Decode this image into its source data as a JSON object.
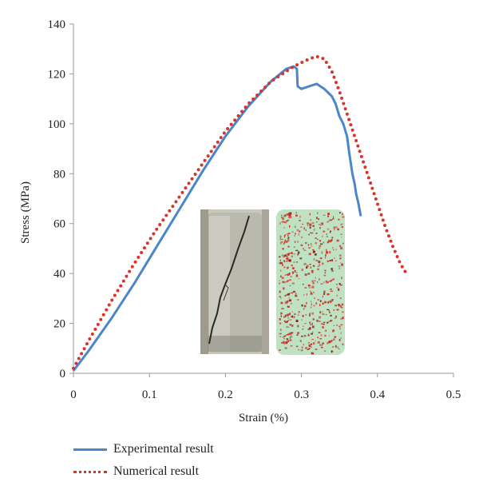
{
  "chart_data": {
    "type": "line",
    "xlabel": "Strain (%)",
    "ylabel": "Stress (MPa)",
    "xlim": [
      0,
      0.5
    ],
    "ylim": [
      0,
      140
    ],
    "xticks": [
      "0",
      "0.1",
      "0.2",
      "0.3",
      "0.4",
      "0.5"
    ],
    "yticks": [
      "0",
      "20",
      "40",
      "60",
      "80",
      "100",
      "120",
      "140"
    ],
    "grid": false,
    "legend_position": "bottom-left",
    "series": [
      {
        "name": "Experimental result",
        "color": "#4a86c8",
        "style": "solid",
        "x": [
          0,
          0.02,
          0.05,
          0.08,
          0.11,
          0.14,
          0.17,
          0.2,
          0.23,
          0.26,
          0.28,
          0.29,
          0.294,
          0.295,
          0.3,
          0.31,
          0.32,
          0.33,
          0.34,
          0.345,
          0.35,
          0.355,
          0.36,
          0.363,
          0.367,
          0.37,
          0.372,
          0.375,
          0.378
        ],
        "y": [
          1,
          9,
          22,
          36,
          51,
          66,
          81,
          95,
          107,
          117,
          122,
          123,
          122,
          115,
          114,
          115,
          116,
          114,
          111,
          108,
          103,
          100,
          95,
          88,
          80,
          76,
          72,
          68,
          63
        ]
      },
      {
        "name": "Numerical result",
        "color": "#d9342b",
        "style": "dotted",
        "x": [
          0,
          0.02,
          0.05,
          0.08,
          0.11,
          0.14,
          0.17,
          0.2,
          0.23,
          0.26,
          0.29,
          0.31,
          0.32,
          0.33,
          0.34,
          0.35,
          0.36,
          0.37,
          0.38,
          0.39,
          0.4,
          0.41,
          0.42,
          0.43,
          0.44
        ],
        "y": [
          2,
          13,
          29,
          44,
          58,
          71,
          84,
          97,
          108,
          117,
          123,
          126,
          127,
          126,
          121,
          113,
          104,
          95,
          86,
          77,
          68,
          59,
          51,
          44,
          39
        ]
      }
    ]
  },
  "insets": [
    {
      "name": "specimen-photo",
      "color": "#bdbdb1"
    },
    {
      "name": "numerical-specimen",
      "color": "#bfe2c2",
      "accent": "#c92b24"
    }
  ]
}
